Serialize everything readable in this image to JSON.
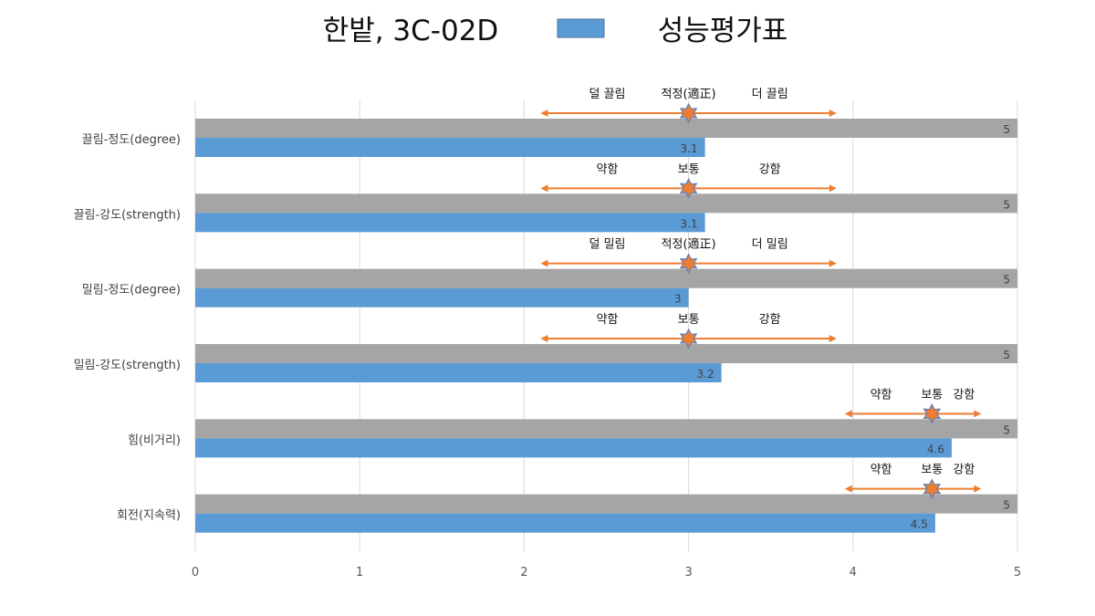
{
  "title_main": "한밭, 3C-02D",
  "legend_label": "성능평가표",
  "colors": {
    "max_bar": "#a5a5a5",
    "value_bar": "#5b9bd5",
    "arrow": "#ed7d31",
    "star_fill": "#ed7d31",
    "star_stroke": "#5b7fbf",
    "grid": "#d9d9d9"
  },
  "chart_data": {
    "type": "bar",
    "orientation": "horizontal",
    "xlim": [
      0,
      5
    ],
    "x_ticks": [
      "0",
      "1",
      "2",
      "3",
      "4",
      "5"
    ],
    "grid": true,
    "legend_position": "top",
    "categories": [
      "끌림-정도(degree)",
      "끌림-강도(strength)",
      "밀림-정도(degree)",
      "밀림-강도(strength)",
      "힘(비거리)",
      "회전(지속력)"
    ],
    "series": [
      {
        "name": "",
        "values": [
          5,
          5,
          5,
          5,
          5,
          5
        ],
        "labels": [
          "5",
          "5",
          "5",
          "5",
          "5",
          "5"
        ]
      },
      {
        "name": "성능평가표",
        "values": [
          3.1,
          3.1,
          3,
          3.2,
          4.6,
          4.5
        ],
        "labels": [
          "3.1",
          "3.1",
          "3",
          "3.2",
          "4.6",
          "4.5"
        ]
      }
    ],
    "annotations": [
      {
        "center": 3.0,
        "from": 2.1,
        "to": 3.9,
        "left": "덜 끌림",
        "middle": "적정(適正)",
        "right": "더 끌림"
      },
      {
        "center": 3.0,
        "from": 2.1,
        "to": 3.9,
        "left": "약함",
        "middle": "보통",
        "right": "강함"
      },
      {
        "center": 3.0,
        "from": 2.1,
        "to": 3.9,
        "left": "덜 밀림",
        "middle": "적정(適正)",
        "right": "더 밀림"
      },
      {
        "center": 3.0,
        "from": 2.1,
        "to": 3.9,
        "left": "약함",
        "middle": "보통",
        "right": "강함"
      },
      {
        "center": 4.48,
        "from": 3.95,
        "to": 4.78,
        "left": "약함",
        "middle": "보통",
        "right": "강함"
      },
      {
        "center": 4.48,
        "from": 3.95,
        "to": 4.78,
        "left": "약함",
        "middle": "보통",
        "right": "강함"
      }
    ]
  }
}
